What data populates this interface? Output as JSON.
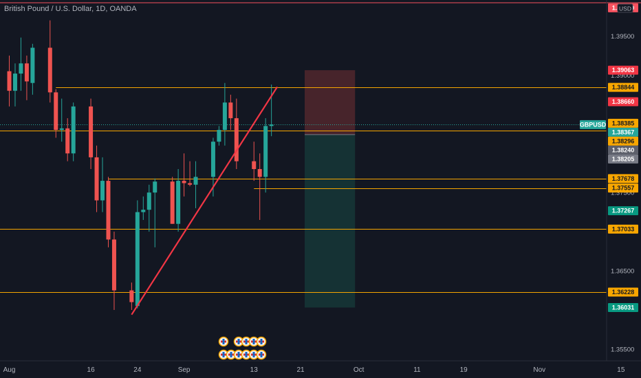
{
  "chart_data": {
    "type": "candlestick",
    "title": "British Pound / U.S. Dollar, 1D, OANDA",
    "currency": "USD",
    "symbol": "GBPUSD",
    "y_ticks": [
      "1.35500",
      "1.36500",
      "1.37500",
      "1.38000",
      "1.39000",
      "1.39500"
    ],
    "ylim": [
      1.3535,
      1.3996
    ],
    "x_ticks": [
      {
        "label": "Aug",
        "date": "2021-08-02"
      },
      {
        "label": "16",
        "date": "2021-08-16"
      },
      {
        "label": "24",
        "date": "2021-08-24"
      },
      {
        "label": "Sep",
        "date": "2021-09-01"
      },
      {
        "label": "13",
        "date": "2021-09-13"
      },
      {
        "label": "21",
        "date": "2021-09-21"
      },
      {
        "label": "Oct",
        "date": "2021-10-01"
      },
      {
        "label": "11",
        "date": "2021-10-11"
      },
      {
        "label": "19",
        "date": "2021-10-19"
      },
      {
        "label": "Nov",
        "date": "2021-11-01"
      },
      {
        "label": "15",
        "date": "2021-11-15"
      }
    ],
    "candles": [
      {
        "d": "2021-07-30",
        "o": 1.3955,
        "h": 1.3985,
        "l": 1.388,
        "c": 1.3888
      },
      {
        "d": "2021-08-02",
        "o": 1.3905,
        "h": 1.3925,
        "l": 1.386,
        "c": 1.388
      },
      {
        "d": "2021-08-03",
        "o": 1.388,
        "h": 1.3915,
        "l": 1.386,
        "c": 1.3902
      },
      {
        "d": "2021-08-04",
        "o": 1.3902,
        "h": 1.3948,
        "l": 1.388,
        "c": 1.3915
      },
      {
        "d": "2021-08-05",
        "o": 1.3915,
        "h": 1.3925,
        "l": 1.3868,
        "c": 1.3892
      },
      {
        "d": "2021-08-06",
        "o": 1.389,
        "h": 1.394,
        "l": 1.3875,
        "c": 1.3935
      },
      {
        "d": "2021-08-09",
        "o": 1.3935,
        "h": 1.397,
        "l": 1.3865,
        "c": 1.3878
      },
      {
        "d": "2021-08-10",
        "o": 1.3878,
        "h": 1.3882,
        "l": 1.382,
        "c": 1.383
      },
      {
        "d": "2021-08-11",
        "o": 1.383,
        "h": 1.387,
        "l": 1.3815,
        "c": 1.3832
      },
      {
        "d": "2021-08-12",
        "o": 1.3832,
        "h": 1.3845,
        "l": 1.379,
        "c": 1.38
      },
      {
        "d": "2021-08-13",
        "o": 1.38,
        "h": 1.3865,
        "l": 1.379,
        "c": 1.386
      },
      {
        "d": "2021-08-16",
        "o": 1.386,
        "h": 1.387,
        "l": 1.378,
        "c": 1.3795
      },
      {
        "d": "2021-08-17",
        "o": 1.3795,
        "h": 1.381,
        "l": 1.3725,
        "c": 1.374
      },
      {
        "d": "2021-08-18",
        "o": 1.374,
        "h": 1.3795,
        "l": 1.3725,
        "c": 1.3765
      },
      {
        "d": "2021-08-19",
        "o": 1.3765,
        "h": 1.377,
        "l": 1.368,
        "c": 1.369
      },
      {
        "d": "2021-08-20",
        "o": 1.369,
        "h": 1.37,
        "l": 1.36,
        "c": 1.3625
      },
      {
        "d": "2021-08-23",
        "o": 1.3625,
        "h": 1.3635,
        "l": 1.36,
        "c": 1.361
      },
      {
        "d": "2021-08-24",
        "o": 1.3605,
        "h": 1.374,
        "l": 1.3602,
        "c": 1.3725
      },
      {
        "d": "2021-08-25",
        "o": 1.3725,
        "h": 1.3745,
        "l": 1.3715,
        "c": 1.3728
      },
      {
        "d": "2021-08-26",
        "o": 1.3728,
        "h": 1.376,
        "l": 1.37,
        "c": 1.375
      },
      {
        "d": "2021-08-27",
        "o": 1.375,
        "h": 1.3768,
        "l": 1.368,
        "c": 1.3764
      },
      {
        "d": "2021-08-30",
        "o": 1.3764,
        "h": 1.377,
        "l": 1.371,
        "c": 1.371
      },
      {
        "d": "2021-08-31",
        "o": 1.371,
        "h": 1.378,
        "l": 1.37,
        "c": 1.3765
      },
      {
        "d": "2021-09-01",
        "o": 1.3765,
        "h": 1.38,
        "l": 1.3745,
        "c": 1.3762
      },
      {
        "d": "2021-09-02",
        "o": 1.3762,
        "h": 1.379,
        "l": 1.3758,
        "c": 1.376
      },
      {
        "d": "2021-09-03",
        "o": 1.376,
        "h": 1.379,
        "l": 1.373,
        "c": 1.377
      },
      {
        "d": "2021-09-06",
        "o": 1.377,
        "h": 1.382,
        "l": 1.3745,
        "c": 1.3815
      },
      {
        "d": "2021-09-07",
        "o": 1.3815,
        "h": 1.3835,
        "l": 1.381,
        "c": 1.383
      },
      {
        "d": "2021-09-08",
        "o": 1.383,
        "h": 1.389,
        "l": 1.381,
        "c": 1.3865
      },
      {
        "d": "2021-09-09",
        "o": 1.3865,
        "h": 1.3875,
        "l": 1.383,
        "c": 1.3845
      },
      {
        "d": "2021-09-10",
        "o": 1.3845,
        "h": 1.387,
        "l": 1.378,
        "c": 1.379
      },
      {
        "d": "2021-09-13",
        "o": 1.379,
        "h": 1.3815,
        "l": 1.3765,
        "c": 1.378
      },
      {
        "d": "2021-09-14",
        "o": 1.378,
        "h": 1.38,
        "l": 1.3715,
        "c": 1.377
      },
      {
        "d": "2021-09-15",
        "o": 1.377,
        "h": 1.3845,
        "l": 1.375,
        "c": 1.3835
      },
      {
        "d": "2021-09-16",
        "o": 1.3835,
        "h": 1.3888,
        "l": 1.3822,
        "c": 1.3837
      }
    ],
    "trendline": {
      "from": {
        "d": "2021-08-23",
        "y": 1.3594
      },
      "to": {
        "d": "2021-09-17",
        "y": 1.3885
      }
    },
    "horizontal_levels": [
      {
        "price": 1.38844,
        "label": "1.38844",
        "x_from": "2021-08-10"
      },
      {
        "price": 1.38296,
        "label": "1.38296",
        "x_from": "start"
      },
      {
        "price": 1.37678,
        "label": "1.37678",
        "x_from": "2021-08-19"
      },
      {
        "price": 1.37557,
        "label": "1.37557",
        "x_from": "2021-09-13"
      },
      {
        "price": 1.37033,
        "label": "1.37033",
        "x_from": "start"
      },
      {
        "price": 1.36228,
        "label": "1.36228",
        "x_from": "start"
      }
    ],
    "current_price": {
      "price": 1.38367,
      "label": "1.38367"
    },
    "position": {
      "x_from": "2021-09-21",
      "x_to": "2021-09-30",
      "stop": 1.39063,
      "entry": 1.3824,
      "target": 1.36031
    },
    "price_tags": [
      {
        "label": "1.39860",
        "price": 1.3986,
        "color": "#f7525f",
        "text": "light"
      },
      {
        "label": "1.39063",
        "price": 1.39063,
        "color": "#f23645",
        "text": "light"
      },
      {
        "label": "1.38844",
        "price": 1.38844,
        "color": "#f7a600",
        "text": "dark"
      },
      {
        "label": "1.38660",
        "price": 1.3866,
        "color": "#f23645",
        "text": "light"
      },
      {
        "label": "1.38385",
        "price": 1.38385,
        "color": "#f7a600",
        "text": "dark"
      },
      {
        "label": "1.38367",
        "price": 1.38367,
        "color": "#26a69a",
        "text": "light"
      },
      {
        "label": "1.38296",
        "price": 1.38296,
        "color": "#f7a600",
        "text": "dark"
      },
      {
        "label": "1.38240",
        "price": 1.3824,
        "color": "#5d606b",
        "text": "light"
      },
      {
        "label": "1.38205",
        "price": 1.38205,
        "color": "#787b86",
        "text": "light"
      },
      {
        "label": "1.37678",
        "price": 1.37678,
        "color": "#f7a600",
        "text": "dark"
      },
      {
        "label": "1.37557",
        "price": 1.37557,
        "color": "#f7a600",
        "text": "dark"
      },
      {
        "label": "1.37267",
        "price": 1.37267,
        "color": "#089981",
        "text": "light"
      },
      {
        "label": "1.37033",
        "price": 1.37033,
        "color": "#f7a600",
        "text": "dark"
      },
      {
        "label": "1.36228",
        "price": 1.36228,
        "color": "#f7a600",
        "text": "dark"
      },
      {
        "label": "1.36031",
        "price": 1.36031,
        "color": "#089981",
        "text": "light"
      }
    ],
    "colors": {
      "up": "#26a69a",
      "down": "#ef5350",
      "level": "#f7a600",
      "trendline": "#f23645",
      "stop_zone": "#5a2a2f",
      "target_zone": "#173a3a",
      "grid": "#1e222d"
    }
  }
}
